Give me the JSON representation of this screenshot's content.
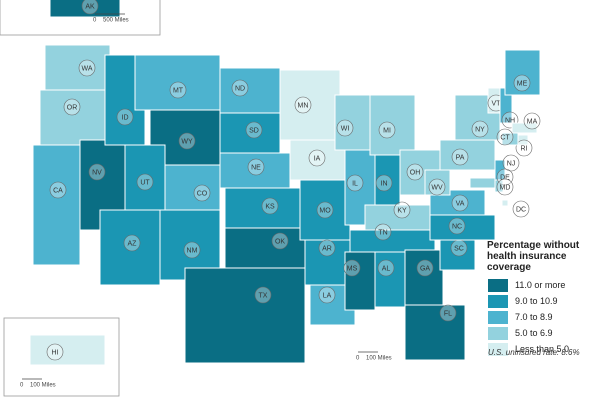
{
  "map": {
    "states": [
      {
        "abbr": "WA",
        "color": "#93d2de"
      },
      {
        "abbr": "OR",
        "color": "#93d2de"
      },
      {
        "abbr": "CA",
        "color": "#4db3cf"
      },
      {
        "abbr": "NV",
        "color": "#0a6e84"
      },
      {
        "abbr": "ID",
        "color": "#1b96b3"
      },
      {
        "abbr": "MT",
        "color": "#4db3cf"
      },
      {
        "abbr": "WY",
        "color": "#0a6e84"
      },
      {
        "abbr": "UT",
        "color": "#1b96b3"
      },
      {
        "abbr": "CO",
        "color": "#4db3cf"
      },
      {
        "abbr": "AZ",
        "color": "#1b96b3"
      },
      {
        "abbr": "NM",
        "color": "#1b96b3"
      },
      {
        "abbr": "ND",
        "color": "#4db3cf"
      },
      {
        "abbr": "SD",
        "color": "#1b96b3"
      },
      {
        "abbr": "NE",
        "color": "#4db3cf"
      },
      {
        "abbr": "KS",
        "color": "#1b96b3"
      },
      {
        "abbr": "OK",
        "color": "#0a6e84"
      },
      {
        "abbr": "TX",
        "color": "#0a6e84"
      },
      {
        "abbr": "MN",
        "color": "#d5eef0"
      },
      {
        "abbr": "IA",
        "color": "#d5eef0"
      },
      {
        "abbr": "MO",
        "color": "#1b96b3"
      },
      {
        "abbr": "AR",
        "color": "#1b96b3"
      },
      {
        "abbr": "LA",
        "color": "#4db3cf"
      },
      {
        "abbr": "WI",
        "color": "#93d2de"
      },
      {
        "abbr": "IL",
        "color": "#4db3cf"
      },
      {
        "abbr": "MI",
        "color": "#93d2de"
      },
      {
        "abbr": "IN",
        "color": "#1b96b3"
      },
      {
        "abbr": "OH",
        "color": "#93d2de"
      },
      {
        "abbr": "KY",
        "color": "#93d2de"
      },
      {
        "abbr": "TN",
        "color": "#1b96b3"
      },
      {
        "abbr": "MS",
        "color": "#0a6e84"
      },
      {
        "abbr": "AL",
        "color": "#1b96b3"
      },
      {
        "abbr": "GA",
        "color": "#0a6e84"
      },
      {
        "abbr": "FL",
        "color": "#0a6e84"
      },
      {
        "abbr": "SC",
        "color": "#1b96b3"
      },
      {
        "abbr": "NC",
        "color": "#1b96b3"
      },
      {
        "abbr": "VA",
        "color": "#4db3cf"
      },
      {
        "abbr": "WV",
        "color": "#93d2de"
      },
      {
        "abbr": "PA",
        "color": "#93d2de"
      },
      {
        "abbr": "NY",
        "color": "#93d2de"
      },
      {
        "abbr": "VT",
        "color": "#d5eef0"
      },
      {
        "abbr": "NH",
        "color": "#4db3cf"
      },
      {
        "abbr": "ME",
        "color": "#4db3cf"
      },
      {
        "abbr": "MA",
        "color": "#d5eef0"
      },
      {
        "abbr": "RI",
        "color": "#d5eef0"
      },
      {
        "abbr": "CT",
        "color": "#93d2de"
      },
      {
        "abbr": "NJ",
        "color": "#4db3cf"
      },
      {
        "abbr": "DE",
        "color": "#93d2de"
      },
      {
        "abbr": "MD",
        "color": "#93d2de"
      },
      {
        "abbr": "DC",
        "color": "#d5eef0"
      },
      {
        "abbr": "AK",
        "color": "#0a6e84"
      },
      {
        "abbr": "HI",
        "color": "#d5eef0"
      }
    ],
    "legend": {
      "title": "Percentage without health insurance coverage",
      "items": [
        {
          "label": "11.0 or more",
          "color": "#0a6e84"
        },
        {
          "label": "9.0 to 10.9",
          "color": "#1b96b3"
        },
        {
          "label": "7.0 to 8.9",
          "color": "#4db3cf"
        },
        {
          "label": "5.0 to 6.9",
          "color": "#93d2de"
        },
        {
          "label": "Less than 5.0",
          "color": "#d5eef0"
        }
      ]
    },
    "note": "U.S. uninsured rate: 8.6%",
    "scale_bars": [
      {
        "start": "0",
        "end": "500 Miles"
      },
      {
        "start": "0",
        "end": "100 Miles"
      },
      {
        "start": "0",
        "end": "100 Miles"
      }
    ]
  }
}
